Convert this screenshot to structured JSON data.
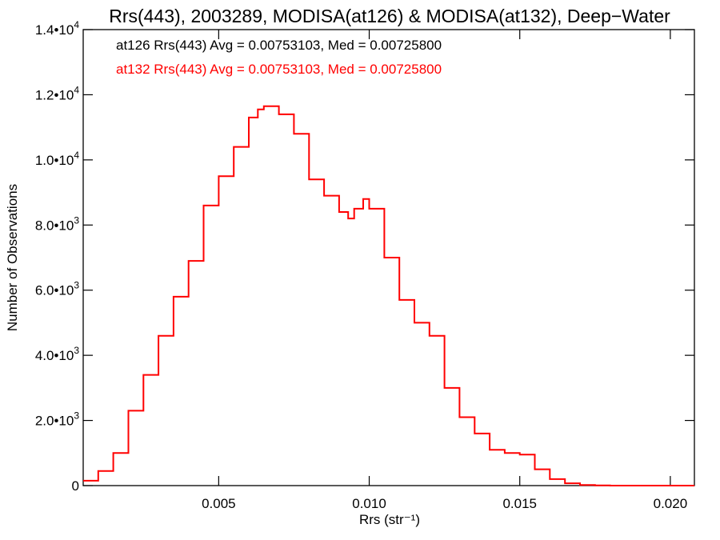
{
  "chart_data": {
    "type": "histogram",
    "title": "Rrs(443), 2003289, MODISA(at126) & MODISA(at132), Deep−Water",
    "xlabel": "Rrs (str⁻¹)",
    "ylabel": "Number of Observations",
    "xlim": [
      0.0005,
      0.0208
    ],
    "ylim": [
      0,
      14000
    ],
    "x_ticks": [
      {
        "value": 0.005,
        "label": "0.005"
      },
      {
        "value": 0.01,
        "label": "0.010"
      },
      {
        "value": 0.015,
        "label": "0.015"
      },
      {
        "value": 0.02,
        "label": "0.020"
      }
    ],
    "y_ticks": [
      {
        "value": 0,
        "mantissa": "0",
        "exponent": ""
      },
      {
        "value": 2000,
        "mantissa": "2.0•10",
        "exponent": "3"
      },
      {
        "value": 4000,
        "mantissa": "4.0•10",
        "exponent": "3"
      },
      {
        "value": 6000,
        "mantissa": "6.0•10",
        "exponent": "3"
      },
      {
        "value": 8000,
        "mantissa": "8.0•10",
        "exponent": "3"
      },
      {
        "value": 10000,
        "mantissa": "1.0•10",
        "exponent": "4"
      },
      {
        "value": 12000,
        "mantissa": "1.2•10",
        "exponent": "4"
      },
      {
        "value": 14000,
        "mantissa": "1.4•10",
        "exponent": "4"
      }
    ],
    "annotations": [
      {
        "text": "at126 Rrs(443) Avg = 0.00753103, Med = 0.00725800",
        "color": "#000000"
      },
      {
        "text": "at132 Rrs(443) Avg = 0.00753103, Med = 0.00725800",
        "color": "#ff0000"
      }
    ],
    "series": [
      {
        "color": "#ff0000",
        "style": "step",
        "x": [
          0.0005,
          0.001,
          0.0015,
          0.002,
          0.0025,
          0.003,
          0.0035,
          0.004,
          0.0045,
          0.005,
          0.0055,
          0.006,
          0.0063,
          0.0065,
          0.007,
          0.0075,
          0.008,
          0.0085,
          0.009,
          0.0093,
          0.0095,
          0.0098,
          0.01,
          0.0105,
          0.011,
          0.0115,
          0.012,
          0.0125,
          0.013,
          0.0135,
          0.014,
          0.0145,
          0.015,
          0.0155,
          0.016,
          0.0165,
          0.017,
          0.0175,
          0.018,
          0.019,
          0.02,
          0.0208
        ],
        "y": [
          150,
          450,
          1000,
          2300,
          3400,
          4600,
          5800,
          6900,
          8600,
          9500,
          10400,
          11300,
          11550,
          11650,
          11400,
          10800,
          9400,
          8900,
          8400,
          8200,
          8500,
          8800,
          8500,
          7000,
          5700,
          5000,
          4600,
          3000,
          2100,
          1600,
          1100,
          1000,
          950,
          500,
          200,
          70,
          20,
          5,
          0,
          0,
          0,
          0
        ]
      }
    ]
  }
}
